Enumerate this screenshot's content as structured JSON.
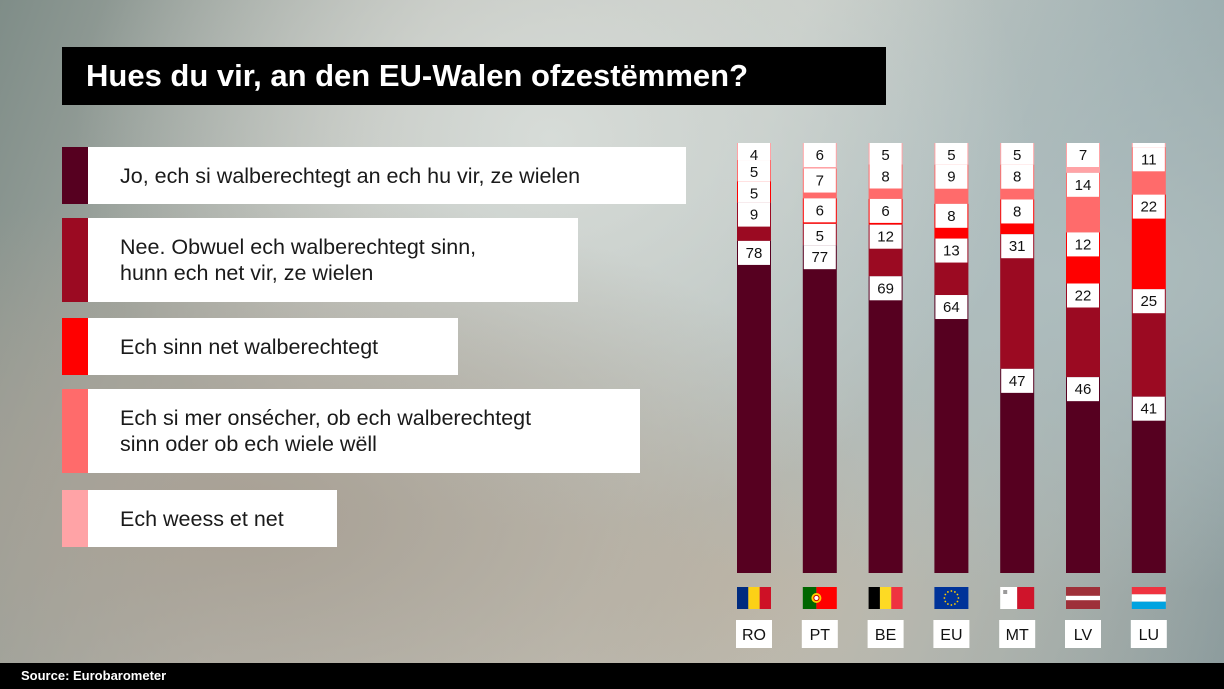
{
  "title": "Hues du vir, an den EU-Walen ofzestëmmen?",
  "source": "Source: Eurobarometer",
  "colors": {
    "yes": "#560020",
    "no": "#9b0a22",
    "not_eligible": "#ff0000",
    "unsure": "#ff6b6b",
    "dont_know": "#ffa3a6"
  },
  "legend": [
    {
      "key": "yes",
      "label": "Jo, ech si walberechtegt an ech hu vir, ze wielen"
    },
    {
      "key": "no",
      "label": "Nee. Obwuel ech walberechtegt sinn,\nhunn ech net vir, ze wielen"
    },
    {
      "key": "not_eligible",
      "label": "Ech sinn net walberechtegt"
    },
    {
      "key": "unsure",
      "label": "Ech si mer onsécher, ob ech walberechtegt\nsinn oder ob ech wiele wëll"
    },
    {
      "key": "dont_know",
      "label": "Ech weess et net"
    }
  ],
  "chart_data": {
    "type": "bar",
    "stacked": true,
    "orientation": "vertical",
    "unit": "%",
    "categories": [
      "RO",
      "PT",
      "BE",
      "EU",
      "MT",
      "LV",
      "LU"
    ],
    "flag_icons": [
      "flag-romania-icon",
      "flag-portugal-icon",
      "flag-belgium-icon",
      "flag-eu-icon",
      "flag-malta-icon",
      "flag-latvia-icon",
      "flag-luxembourg-icon"
    ],
    "series": [
      {
        "name": "Jo, ech si walberechtegt an ech hu vir, ze wielen",
        "key": "yes",
        "values": [
          78,
          77,
          69,
          64,
          47,
          46,
          41
        ]
      },
      {
        "name": "Nee. Obwuel ech walberechtegt sinn, hunn ech net vir, ze wielen",
        "key": "no",
        "values": [
          9,
          5,
          12,
          13,
          31,
          22,
          25
        ]
      },
      {
        "name": "Ech sinn net walberechtegt",
        "key": "not_eligible",
        "values": [
          5,
          6,
          6,
          8,
          8,
          12,
          22
        ]
      },
      {
        "name": "Ech si mer onsécher, ob ech walberechtegt sinn oder ob ech wiele wëll",
        "key": "unsure",
        "values": [
          5,
          7,
          8,
          9,
          8,
          14,
          11
        ]
      },
      {
        "name": "Ech weess et net",
        "key": "dont_know",
        "values": [
          4,
          6,
          5,
          5,
          5,
          7,
          1
        ]
      }
    ]
  }
}
